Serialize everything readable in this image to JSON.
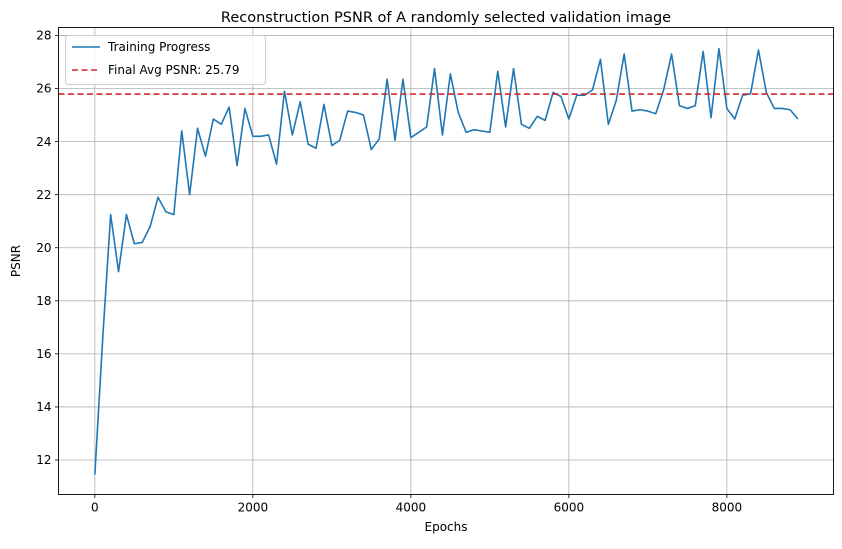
{
  "chart_data": {
    "type": "line",
    "title": "Reconstruction PSNR of A randomly selected validation image",
    "xlabel": "Epochs",
    "ylabel": "PSNR",
    "xlim": [
      -460,
      9350
    ],
    "ylim": [
      10.7,
      28.3
    ],
    "xticks": [
      0,
      2000,
      4000,
      6000,
      8000
    ],
    "yticks": [
      12,
      14,
      16,
      18,
      20,
      22,
      24,
      26,
      28
    ],
    "grid": true,
    "legend_position": "top-left",
    "series": [
      {
        "name": "Training Progress",
        "color": "#1f77b4",
        "style": "solid",
        "x": [
          0,
          100,
          200,
          300,
          400,
          500,
          600,
          700,
          800,
          900,
          1000,
          1100,
          1200,
          1300,
          1400,
          1500,
          1600,
          1700,
          1800,
          1900,
          2000,
          2100,
          2200,
          2300,
          2400,
          2500,
          2600,
          2700,
          2800,
          2900,
          3000,
          3100,
          3200,
          3300,
          3400,
          3500,
          3600,
          3700,
          3800,
          3900,
          4000,
          4100,
          4200,
          4300,
          4400,
          4500,
          4600,
          4700,
          4800,
          4900,
          5000,
          5100,
          5200,
          5300,
          5400,
          5500,
          5600,
          5700,
          5800,
          5900,
          6000,
          6100,
          6200,
          6300,
          6400,
          6500,
          6600,
          6700,
          6800,
          6900,
          7000,
          7100,
          7200,
          7300,
          7400,
          7500,
          7600,
          7700,
          7800,
          7900,
          8000,
          8100,
          8200,
          8300,
          8400,
          8500,
          8600,
          8700,
          8800,
          8900
        ],
        "y": [
          11.45,
          16.6,
          21.25,
          19.1,
          21.25,
          20.15,
          20.2,
          20.8,
          21.9,
          21.35,
          21.25,
          24.4,
          22.0,
          24.5,
          23.45,
          24.85,
          24.65,
          25.3,
          23.1,
          25.25,
          24.2,
          24.2,
          24.25,
          23.15,
          25.9,
          24.25,
          25.5,
          23.9,
          23.75,
          25.4,
          23.85,
          24.05,
          25.15,
          25.1,
          25.0,
          23.7,
          24.1,
          26.35,
          24.05,
          26.35,
          24.15,
          24.35,
          24.55,
          26.75,
          24.25,
          26.55,
          25.1,
          24.35,
          24.45,
          24.4,
          24.35,
          26.65,
          24.55,
          26.75,
          24.65,
          24.5,
          24.95,
          24.8,
          25.85,
          25.7,
          24.85,
          25.75,
          25.75,
          25.95,
          27.1,
          24.65,
          25.55,
          27.3,
          25.15,
          25.2,
          25.15,
          25.05,
          25.95,
          27.3,
          25.35,
          25.25,
          25.35,
          27.4,
          24.9,
          27.5,
          25.25,
          24.85,
          25.75,
          25.8,
          27.45,
          25.85,
          25.25,
          25.25,
          25.2,
          24.85
        ]
      },
      {
        "name": "Final Avg PSNR: 25.79",
        "color": "#d62728",
        "style": "dashed",
        "y_constant": 25.79
      }
    ]
  }
}
